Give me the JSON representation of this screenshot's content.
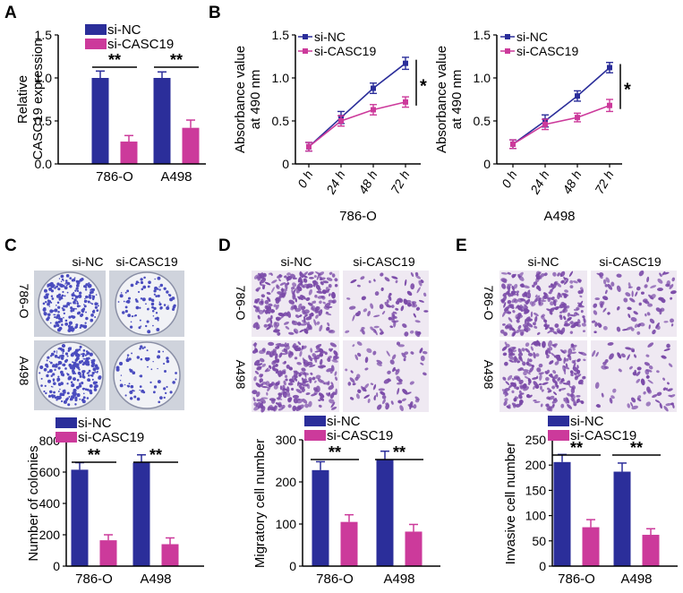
{
  "colors": {
    "blue": "#2b2e9a",
    "magenta": "#cc3a9b",
    "plate_bg": "#cfd3dc",
    "plate_face": "#f1f2f6",
    "colony": "#4a4cbf",
    "transwell_bg": "#efe9f2",
    "cell": "#7a4aa8"
  },
  "panels": {
    "A": {
      "letter": "A"
    },
    "B": {
      "letter": "B"
    },
    "C": {
      "letter": "C",
      "col_labels": [
        "si-NC",
        "si-CASC19"
      ],
      "row_labels": [
        "786-O",
        "A498"
      ]
    },
    "D": {
      "letter": "D",
      "col_labels": [
        "si-NC",
        "si-CASC19"
      ],
      "row_labels": [
        "786-O",
        "A498"
      ]
    },
    "E": {
      "letter": "E",
      "col_labels": [
        "si-NC",
        "si-CASC19"
      ],
      "row_labels": [
        "786-O",
        "A498"
      ]
    }
  },
  "chart_data": [
    {
      "id": "A",
      "type": "bar",
      "categories": [
        "786-O",
        "A498"
      ],
      "series": [
        {
          "name": "si-NC",
          "values": [
            1.0,
            1.0
          ],
          "errors": [
            0.08,
            0.07
          ]
        },
        {
          "name": "si-CASC19",
          "values": [
            0.26,
            0.42
          ],
          "errors": [
            0.07,
            0.09
          ]
        }
      ],
      "ylabel_lines": [
        "Relative",
        "CASC19 expression"
      ],
      "ylim": [
        0,
        1.5
      ],
      "yticks": [
        "0.0",
        "0.5",
        "1.0",
        "1.5"
      ],
      "significance": [
        "**",
        "**"
      ],
      "legend": "top-left"
    },
    {
      "id": "B1",
      "type": "line",
      "x": [
        "0 h",
        "24 h",
        "48 h",
        "72 h"
      ],
      "series": [
        {
          "name": "si-NC",
          "values": [
            0.2,
            0.54,
            0.88,
            1.17
          ],
          "errors": [
            0.05,
            0.07,
            0.06,
            0.07
          ]
        },
        {
          "name": "si-CASC19",
          "values": [
            0.2,
            0.5,
            0.63,
            0.72
          ],
          "errors": [
            0.05,
            0.06,
            0.06,
            0.06
          ]
        }
      ],
      "ylabel_lines": [
        "Absorbance value",
        "at 490 nm"
      ],
      "xlabel": "786-O",
      "ylim": [
        0,
        1.5
      ],
      "yticks": [
        "0",
        "0.5",
        "1.0",
        "1.5"
      ],
      "significance": "*",
      "legend": "top-left"
    },
    {
      "id": "B2",
      "type": "line",
      "x": [
        "0 h",
        "24 h",
        "48 h",
        "72 h"
      ],
      "series": [
        {
          "name": "si-NC",
          "values": [
            0.23,
            0.5,
            0.79,
            1.12
          ],
          "errors": [
            0.05,
            0.07,
            0.06,
            0.06
          ]
        },
        {
          "name": "si-CASC19",
          "values": [
            0.23,
            0.46,
            0.54,
            0.68
          ],
          "errors": [
            0.05,
            0.06,
            0.05,
            0.07
          ]
        }
      ],
      "ylabel_lines": [
        "Absorbance value",
        "at 490 nm"
      ],
      "xlabel": "A498",
      "ylim": [
        0,
        1.5
      ],
      "yticks": [
        "0",
        "0.5",
        "1.0",
        "1.5"
      ],
      "significance": "*",
      "legend": "top-left"
    },
    {
      "id": "C",
      "type": "bar",
      "categories": [
        "786-O",
        "A498"
      ],
      "series": [
        {
          "name": "si-NC",
          "values": [
            615,
            660
          ],
          "errors": [
            45,
            50
          ]
        },
        {
          "name": "si-CASC19",
          "values": [
            165,
            140
          ],
          "errors": [
            35,
            40
          ]
        }
      ],
      "ylabel_lines": [
        "Number of colonies"
      ],
      "ylim": [
        0,
        800
      ],
      "yticks": [
        "0",
        "200",
        "400",
        "600",
        "800"
      ],
      "significance": [
        "**",
        "**"
      ],
      "legend": "top-left"
    },
    {
      "id": "D",
      "type": "bar",
      "categories": [
        "786-O",
        "A498"
      ],
      "series": [
        {
          "name": "si-NC",
          "values": [
            228,
            253
          ],
          "errors": [
            20,
            20
          ]
        },
        {
          "name": "si-CASC19",
          "values": [
            105,
            82
          ],
          "errors": [
            17,
            17
          ]
        }
      ],
      "ylabel_lines": [
        "Migratory cell number"
      ],
      "ylim": [
        0,
        300
      ],
      "yticks": [
        "0",
        "100",
        "200",
        "300"
      ],
      "significance": [
        "**",
        "**"
      ],
      "legend": "top-left"
    },
    {
      "id": "E",
      "type": "bar",
      "categories": [
        "786-O",
        "A498"
      ],
      "series": [
        {
          "name": "si-NC",
          "values": [
            206,
            187
          ],
          "errors": [
            15,
            17
          ]
        },
        {
          "name": "si-CASC19",
          "values": [
            77,
            62
          ],
          "errors": [
            15,
            12
          ]
        }
      ],
      "ylabel_lines": [
        "Invasive cell number"
      ],
      "ylim": [
        0,
        250
      ],
      "yticks": [
        "0",
        "50",
        "100",
        "150",
        "200",
        "250"
      ],
      "significance": [
        "**",
        "**"
      ],
      "legend": "top-left"
    }
  ]
}
